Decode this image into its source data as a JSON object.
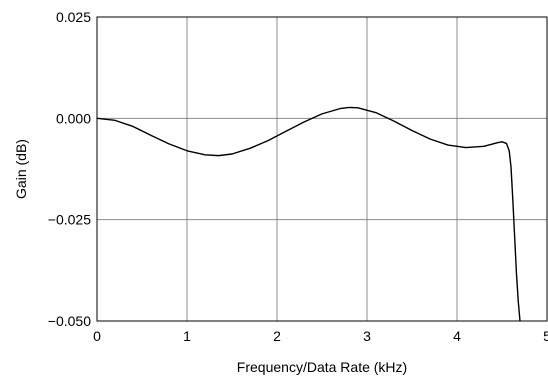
{
  "chart_data": {
    "type": "line",
    "xlabel": "Frequency/Data Rate (kHz)",
    "ylabel": "Gain (dB)",
    "xlim": [
      0,
      5
    ],
    "ylim": [
      -0.05,
      0.025
    ],
    "grid": true,
    "x_ticks": [
      {
        "value": 0,
        "label": "0"
      },
      {
        "value": 1,
        "label": "1"
      },
      {
        "value": 2,
        "label": "2"
      },
      {
        "value": 3,
        "label": "3"
      },
      {
        "value": 4,
        "label": "4"
      },
      {
        "value": 5,
        "label": "5"
      }
    ],
    "y_ticks": [
      {
        "value": 0.025,
        "label": "0.025"
      },
      {
        "value": 0.0,
        "label": "0.000"
      },
      {
        "value": -0.025,
        "label": "−0.025"
      },
      {
        "value": -0.05,
        "label": "−0.050"
      }
    ],
    "series": [
      {
        "color": "#000000",
        "x": [
          0.0,
          0.2,
          0.4,
          0.6,
          0.8,
          1.0,
          1.2,
          1.35,
          1.5,
          1.7,
          1.9,
          2.1,
          2.3,
          2.5,
          2.7,
          2.8,
          2.9,
          3.1,
          3.3,
          3.5,
          3.7,
          3.9,
          4.1,
          4.3,
          4.45,
          4.5,
          4.55,
          4.58,
          4.6,
          4.62,
          4.64,
          4.66,
          4.68,
          4.7
        ],
        "y": [
          0.0,
          -0.0005,
          -0.002,
          -0.0042,
          -0.0063,
          -0.008,
          -0.009,
          -0.0092,
          -0.0088,
          -0.0074,
          -0.0055,
          -0.0032,
          -0.0009,
          0.0011,
          0.0024,
          0.0027,
          0.0026,
          0.0014,
          -0.0007,
          -0.003,
          -0.0051,
          -0.0066,
          -0.0072,
          -0.0069,
          -0.006,
          -0.0058,
          -0.0062,
          -0.008,
          -0.012,
          -0.02,
          -0.029,
          -0.038,
          -0.045,
          -0.05
        ]
      }
    ]
  }
}
